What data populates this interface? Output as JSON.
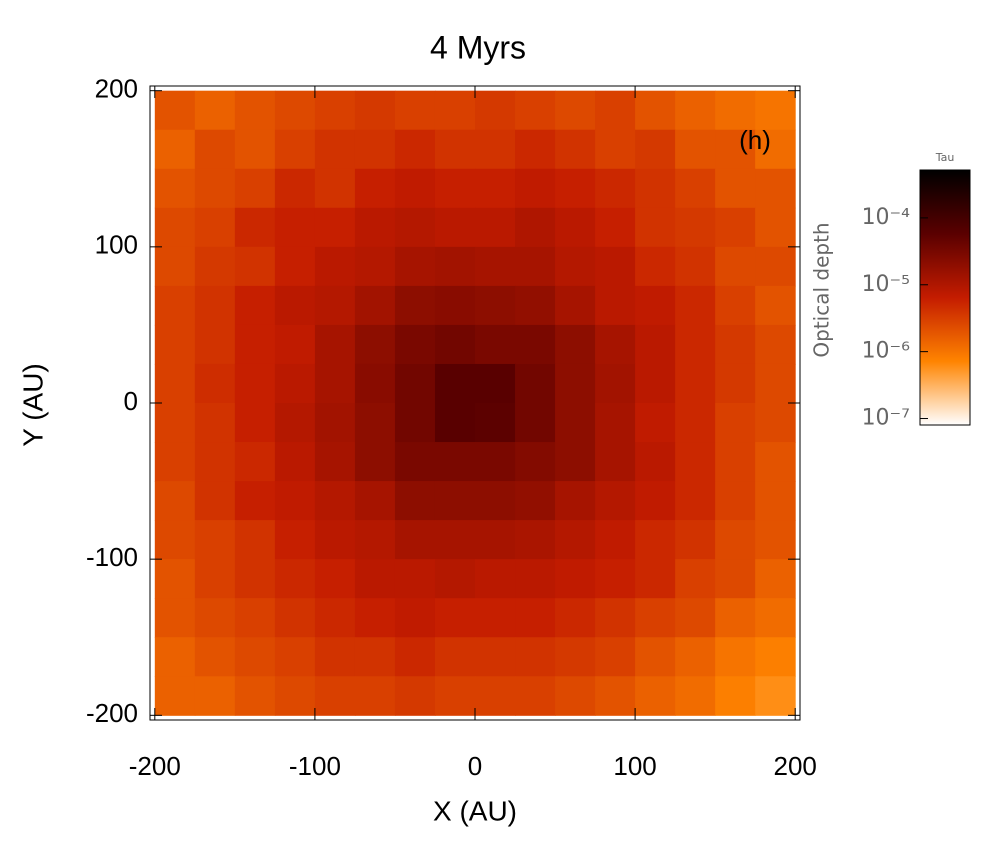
{
  "chart_data": {
    "type": "heatmap",
    "title": "4 Myrs",
    "x_label": "X (AU)",
    "y_label": "Y (AU)",
    "annotation": "(h)",
    "colorbar_title": "Tau",
    "colorbar_label": "Optical depth",
    "x": [
      -187.5,
      -162.5,
      -137.5,
      -112.5,
      -87.5,
      -62.5,
      -37.5,
      -12.5,
      12.5,
      37.5,
      62.5,
      87.5,
      112.5,
      137.5,
      162.5,
      187.5
    ],
    "y": [
      187.5,
      162.5,
      137.5,
      112.5,
      87.5,
      62.5,
      37.5,
      12.5,
      -12.5,
      -37.5,
      -62.5,
      -87.5,
      -112.5,
      -137.5,
      -162.5,
      -187.5
    ],
    "z": [
      [
        2e-06,
        1.5e-06,
        2e-06,
        2.5e-06,
        3e-06,
        3.5e-06,
        3e-06,
        3e-06,
        3.5e-06,
        3e-06,
        2.5e-06,
        3e-06,
        2e-06,
        1.5e-06,
        1.2e-06,
        1e-06
      ],
      [
        1.5e-06,
        2.5e-06,
        2e-06,
        3e-06,
        4e-06,
        4e-06,
        5e-06,
        4e-06,
        4e-06,
        5e-06,
        4e-06,
        3e-06,
        3.5e-06,
        2e-06,
        2e-06,
        1.2e-06
      ],
      [
        2e-06,
        2.5e-06,
        3e-06,
        5e-06,
        4e-06,
        6e-06,
        7e-06,
        6e-06,
        6e-06,
        7e-06,
        6e-06,
        5e-06,
        4e-06,
        3e-06,
        2e-06,
        2e-06
      ],
      [
        2.5e-06,
        3e-06,
        5e-06,
        6e-06,
        6e-06,
        8e-06,
        9e-06,
        8e-06,
        8e-06,
        1e-05,
        8e-06,
        6e-06,
        4e-06,
        3.5e-06,
        3e-06,
        2e-06
      ],
      [
        2.5e-06,
        3.5e-06,
        4e-06,
        6e-06,
        8e-06,
        9e-06,
        1.2e-05,
        1.3e-05,
        1.2e-05,
        1.2e-05,
        9e-06,
        8e-06,
        5e-06,
        4e-06,
        2.5e-06,
        2.5e-06
      ],
      [
        3e-06,
        4e-06,
        6e-06,
        8e-06,
        9e-06,
        1.3e-05,
        2e-05,
        2.2e-05,
        2e-05,
        1.8e-05,
        1.2e-05,
        8e-06,
        7e-06,
        5e-06,
        3e-06,
        2e-06
      ],
      [
        3e-06,
        4e-06,
        6e-06,
        7e-06,
        1.2e-05,
        2e-05,
        3e-05,
        3.5e-05,
        3e-05,
        3e-05,
        2e-05,
        1.2e-05,
        8e-06,
        5e-06,
        3.5e-06,
        2.5e-06
      ],
      [
        3e-06,
        4.5e-06,
        6e-06,
        8e-06,
        1.2e-05,
        2.2e-05,
        3.5e-05,
        6e-05,
        6e-05,
        3.5e-05,
        2e-05,
        1.3e-05,
        8e-06,
        5e-06,
        3.5e-06,
        2.5e-06
      ],
      [
        3e-06,
        4e-06,
        6e-06,
        9e-06,
        1.3e-05,
        2e-05,
        3.5e-05,
        6e-05,
        5.5e-05,
        3.5e-05,
        2e-05,
        1.2e-05,
        7e-06,
        5e-06,
        3e-06,
        2.5e-06
      ],
      [
        3e-06,
        4e-06,
        5e-06,
        8e-06,
        1.2e-05,
        2e-05,
        3e-05,
        3e-05,
        3e-05,
        2.5e-05,
        2e-05,
        1.2e-05,
        8e-06,
        5e-06,
        3e-06,
        2e-06
      ],
      [
        2.5e-06,
        4e-06,
        6e-06,
        7e-06,
        9e-06,
        1.2e-05,
        2e-05,
        2e-05,
        2e-05,
        1.8e-05,
        1.2e-05,
        9e-06,
        7e-06,
        5e-06,
        3e-06,
        2e-06
      ],
      [
        2.5e-06,
        3e-06,
        4e-06,
        6e-06,
        8e-06,
        9e-06,
        1.2e-05,
        1.2e-05,
        1.2e-05,
        1.1e-05,
        9e-06,
        7e-06,
        5e-06,
        4e-06,
        2.5e-06,
        2e-06
      ],
      [
        2e-06,
        3e-06,
        4e-06,
        5e-06,
        6e-06,
        8e-06,
        8e-06,
        9e-06,
        8e-06,
        8e-06,
        7e-06,
        6e-06,
        5e-06,
        3e-06,
        2.5e-06,
        1.5e-06
      ],
      [
        2e-06,
        2.5e-06,
        3e-06,
        4e-06,
        5e-06,
        6e-06,
        7e-06,
        6e-06,
        6e-06,
        6e-06,
        5e-06,
        4e-06,
        3e-06,
        2.5e-06,
        1.5e-06,
        1.2e-06
      ],
      [
        1.5e-06,
        2e-06,
        2.5e-06,
        3e-06,
        4e-06,
        4e-06,
        5e-06,
        4e-06,
        4e-06,
        4e-06,
        3.5e-06,
        3e-06,
        2e-06,
        1.5e-06,
        1e-06,
        8e-07
      ],
      [
        1.5e-06,
        1.5e-06,
        2e-06,
        2.5e-06,
        3e-06,
        3e-06,
        3.5e-06,
        3e-06,
        3e-06,
        3e-06,
        2.5e-06,
        2e-06,
        1.5e-06,
        1.2e-06,
        8e-07,
        6e-07
      ]
    ],
    "xlim": [
      -203,
      203
    ],
    "ylim": [
      -203,
      203
    ],
    "xticks": [
      -200,
      -100,
      0,
      100,
      200
    ],
    "yticks": [
      -200,
      -100,
      0,
      100,
      200
    ],
    "clim": [
      8e-08,
      0.00052
    ],
    "colorbar_log": true,
    "colorbar_ticks": [
      {
        "value": 1e-07,
        "label": "10⁻⁷"
      },
      {
        "value": 1e-06,
        "label": "10⁻⁶"
      },
      {
        "value": 1e-05,
        "label": "10⁻⁵"
      },
      {
        "value": 0.0001,
        "label": "10⁻⁴"
      }
    ],
    "colormap": [
      "#ffffff",
      "#ff8400",
      "#c41c00",
      "#5a0000",
      "#000000"
    ]
  }
}
